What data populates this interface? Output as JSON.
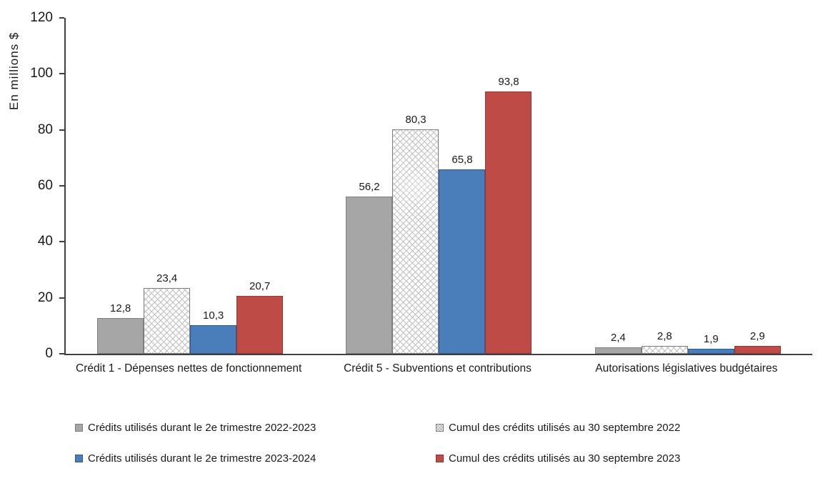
{
  "chart_data": {
    "type": "bar",
    "title": "",
    "xlabel": "",
    "ylabel": "En millions $",
    "ylim": [
      0,
      120
    ],
    "yticks": [
      0,
      20,
      40,
      60,
      80,
      100,
      120
    ],
    "grid": false,
    "legend_position": "bottom",
    "categories": [
      "Crédit 1 - Dépenses nettes de fonctionnement",
      "Crédit 5 - Subventions et contributions",
      "Autorisations législatives budgétaires"
    ],
    "series": [
      {
        "name": "Crédits utilisés durant le 2e trimestre 2022-2023",
        "values": [
          12.8,
          56.2,
          2.4
        ],
        "labels": [
          "12,8",
          "56,2",
          "2,4"
        ],
        "color": "#a6a6a6",
        "border": "#7f7f7f",
        "pattern": "solid"
      },
      {
        "name": "Cumul des crédits utilisés au 30 septembre 2022",
        "values": [
          23.4,
          80.3,
          2.8
        ],
        "labels": [
          "23,4",
          "80,3",
          "2,8"
        ],
        "color": "#ffffff",
        "border": "#7f7f7f",
        "pattern": "crosshatch"
      },
      {
        "name": "Crédits utilisés durant le 2e trimestre 2023-2024",
        "values": [
          10.3,
          65.8,
          1.9
        ],
        "labels": [
          "10,3",
          "65,8",
          "1,9"
        ],
        "color": "#4a7ebb",
        "border": "#2f5a92",
        "pattern": "solid"
      },
      {
        "name": "Cumul des crédits utilisés au 30 septembre 2023",
        "values": [
          20.7,
          93.8,
          2.9
        ],
        "labels": [
          "20,7",
          "93,8",
          "2,9"
        ],
        "color": "#bf4b47",
        "border": "#943734",
        "pattern": "solid"
      }
    ]
  }
}
